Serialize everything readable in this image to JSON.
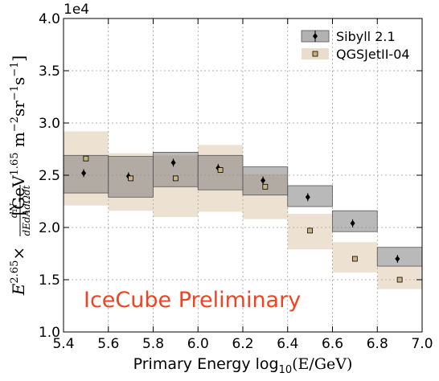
{
  "chart_data": {
    "type": "scatter",
    "multiplier": "1e4",
    "xlabel_text": "Primary Energy log",
    "xlabel_sub": "10",
    "xlabel_expr": "(E/GeV)",
    "ylabel": "E^{2.65} × dN/(dE dA dΩ dt) [GeV^{1.65} m^{-2} sr^{-1} s^{-1}]",
    "ylabel_parts": {
      "e": "E",
      "exp": "2.65",
      "times": "×",
      "num": "dN",
      "den": "dEdAdΩdt",
      "unit_open": "[GeV",
      "unit_exp1": "1.65",
      "unit_m": " m",
      "unit_exp2": "−2",
      "unit_sr": "sr",
      "unit_exp3": "−1",
      "unit_s": "s",
      "unit_exp4": "−1",
      "unit_close": "]"
    },
    "xlim": [
      5.4,
      7.0
    ],
    "ylim": [
      1.0,
      4.0
    ],
    "xticks": [
      "5.4",
      "5.6",
      "5.8",
      "6.0",
      "6.2",
      "6.4",
      "6.6",
      "6.8",
      "7.0"
    ],
    "yticks": [
      "1.0",
      "1.5",
      "2.0",
      "2.5",
      "3.0",
      "3.5",
      "4.0"
    ],
    "grid": true,
    "legend_position": "top-right",
    "annotation": "IceCube Preliminary",
    "bins": [
      {
        "lo": 5.4,
        "hi": 5.6
      },
      {
        "lo": 5.6,
        "hi": 5.8
      },
      {
        "lo": 5.8,
        "hi": 6.0
      },
      {
        "lo": 6.0,
        "hi": 6.2
      },
      {
        "lo": 6.2,
        "hi": 6.4
      },
      {
        "lo": 6.4,
        "hi": 6.6
      },
      {
        "lo": 6.6,
        "hi": 6.8
      },
      {
        "lo": 6.8,
        "hi": 7.0
      }
    ],
    "series": [
      {
        "name": "Sibyll 2.1",
        "color": "#7f7f7f",
        "marker": "diamond",
        "x": [
          5.49,
          5.69,
          5.89,
          6.09,
          6.29,
          6.49,
          6.69,
          6.89
        ],
        "y": [
          2.52,
          2.49,
          2.62,
          2.57,
          2.45,
          2.29,
          2.04,
          1.7
        ],
        "band_low": [
          2.33,
          2.29,
          2.39,
          2.36,
          2.31,
          2.2,
          1.96,
          1.63
        ],
        "band_high": [
          2.69,
          2.68,
          2.72,
          2.69,
          2.58,
          2.4,
          2.16,
          1.81
        ]
      },
      {
        "name": "QGSJetII-04",
        "color": "#d2b48c",
        "marker": "square",
        "x": [
          5.5,
          5.7,
          5.9,
          6.1,
          6.3,
          6.5,
          6.7,
          6.9
        ],
        "y": [
          2.66,
          2.47,
          2.47,
          2.55,
          2.39,
          1.97,
          1.7,
          1.5
        ],
        "band_low": [
          2.21,
          2.16,
          2.1,
          2.15,
          2.08,
          1.79,
          1.57,
          1.41
        ],
        "band_high": [
          2.92,
          2.71,
          2.69,
          2.79,
          2.51,
          2.13,
          1.86,
          1.63
        ]
      }
    ]
  }
}
